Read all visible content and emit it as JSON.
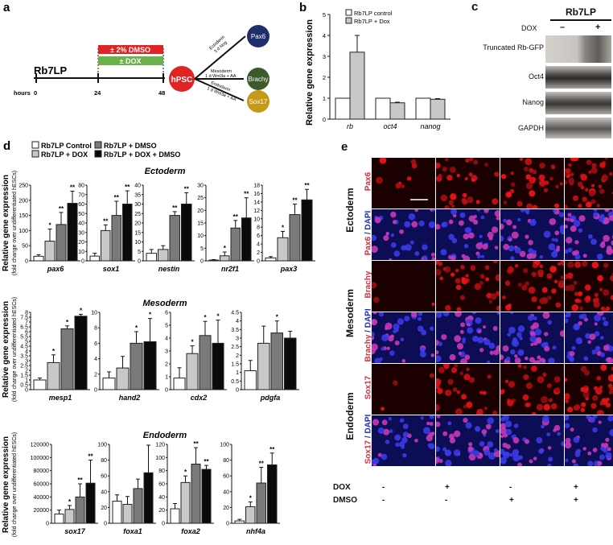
{
  "panel_a": {
    "letter": "a",
    "cell_line": "Rb7LP",
    "hours_label": "hours",
    "hours": [
      "0",
      "24",
      "48"
    ],
    "dmso": "± 2% DMSO",
    "dox": "± DOX",
    "hpsc": "hPSC",
    "routes": [
      {
        "name": "Ectoderm",
        "condition": "3 d Nog",
        "target": "Pax6",
        "color": "#1f2f6b"
      },
      {
        "name": "Mesoderm",
        "condition": "1 d Wnt3a + AA",
        "target": "Brachy",
        "color": "#3c5a2a"
      },
      {
        "name": "Endoderm",
        "condition": "1 d Wnt3a + AA",
        "target": "Sox17",
        "color": "#c59a17"
      }
    ],
    "colors": {
      "dmso": "#e02424",
      "dox": "#6ab04c",
      "hpsc": "#e02424"
    }
  },
  "panel_b": {
    "letter": "b",
    "ylabel": "Relative gene expression",
    "legend": [
      "Rb7LP control",
      "Rb7LP + Dox"
    ]
  },
  "panel_c": {
    "letter": "c",
    "title": "Rb7LP",
    "dox_label": "DOX",
    "dox_minus": "–",
    "dox_plus": "+",
    "rows": [
      "Truncated Rb-GFP",
      "Oct4",
      "Nanog",
      "GAPDH"
    ]
  },
  "panel_d": {
    "letter": "d",
    "legend": [
      "Rb7LP Control",
      "Rb7LP + DOX",
      "Rb7LP + DMSO",
      "Rb7LP + DOX + DMSO"
    ],
    "ylabel": "Relative gene expression",
    "ylabel_sub": "(fold change over undifferentiated hESCs)",
    "sections": [
      "Ectoderm",
      "Mesoderm",
      "Endoderm"
    ]
  },
  "panel_e": {
    "letter": "e",
    "germ_layers": [
      "Ectoderm",
      "Mesoderm",
      "Endoderm"
    ],
    "rows": [
      {
        "marker": "Pax6",
        "dapi": false
      },
      {
        "marker": "Pax6",
        "dapi": true
      },
      {
        "marker": "Brachy",
        "dapi": false
      },
      {
        "marker": "Brachy",
        "dapi": true
      },
      {
        "marker": "Sox17",
        "dapi": false
      },
      {
        "marker": "Sox17",
        "dapi": true
      }
    ],
    "dapi_suffix": " / DAPI",
    "dox_row": {
      "label": "DOX",
      "values": [
        "-",
        "+",
        "-",
        "+"
      ]
    },
    "dmso_row": {
      "label": "DMSO",
      "values": [
        "-",
        "-",
        "+",
        "+"
      ]
    },
    "colors": {
      "marker": "#e0283a",
      "dapi": "#1c2cc8"
    }
  },
  "chart_data": [
    {
      "type": "bar",
      "panel": "b",
      "categories": [
        "rb",
        "oct4",
        "nanog"
      ],
      "series": [
        {
          "name": "Rb7LP control",
          "values": [
            1.0,
            1.0,
            1.0
          ]
        },
        {
          "name": "Rb7LP + Dox",
          "values": [
            3.2,
            0.78,
            0.95
          ]
        }
      ],
      "errors": [
        [
          0,
          0,
          0
        ],
        [
          0.8,
          0.03,
          0.03
        ]
      ],
      "ylim": [
        0,
        5
      ],
      "yticks": [
        0,
        1,
        2,
        3,
        4,
        5
      ]
    },
    {
      "type": "bar",
      "panel": "d",
      "section": "Ectoderm",
      "gene": "pax6",
      "values": [
        15,
        65,
        120,
        190
      ],
      "errors": [
        5,
        40,
        40,
        40
      ],
      "sig": [
        "",
        "*",
        "**",
        "**"
      ],
      "ylim": [
        0,
        250
      ],
      "yticks": [
        0,
        50,
        100,
        150,
        200,
        250
      ]
    },
    {
      "type": "bar",
      "panel": "d",
      "section": "Ectoderm",
      "gene": "sox1",
      "values": [
        5,
        32,
        48,
        60
      ],
      "errors": [
        3,
        6,
        15,
        14
      ],
      "sig": [
        "",
        "**",
        "**",
        "**"
      ],
      "ylim": [
        0,
        80
      ],
      "yticks": [
        0,
        10,
        20,
        30,
        40,
        50,
        60,
        70,
        80
      ]
    },
    {
      "type": "bar",
      "panel": "d",
      "section": "Ectoderm",
      "gene": "nestin",
      "values": [
        4,
        6,
        24,
        30
      ],
      "errors": [
        2,
        2,
        2,
        6
      ],
      "sig": [
        "",
        "",
        "**",
        "**"
      ],
      "ylim": [
        0,
        40
      ],
      "yticks": [
        0,
        5,
        10,
        15,
        20,
        25,
        30,
        35,
        40
      ]
    },
    {
      "type": "bar",
      "panel": "d",
      "section": "Ectoderm",
      "gene": "nr2f1",
      "values": [
        0.3,
        2,
        13,
        17
      ],
      "errors": [
        0.2,
        1.5,
        3,
        8
      ],
      "sig": [
        "",
        "*",
        "**",
        "**"
      ],
      "ylim": [
        0,
        30
      ],
      "yticks": [
        0,
        5,
        10,
        15,
        20,
        25,
        30
      ]
    },
    {
      "type": "bar",
      "panel": "d",
      "section": "Ectoderm",
      "gene": "pax3",
      "values": [
        0.7,
        5.5,
        11,
        14.5
      ],
      "errors": [
        0.3,
        1.5,
        2.5,
        2.5
      ],
      "sig": [
        "",
        "*",
        "**",
        "**"
      ],
      "ylim": [
        0,
        18
      ],
      "yticks": [
        0,
        2,
        4,
        6,
        8,
        10,
        12,
        14,
        16,
        18
      ]
    },
    {
      "type": "bar",
      "panel": "d",
      "section": "Mesoderm",
      "gene": "mesp1",
      "values": [
        1,
        2.8,
        6.3,
        7.6
      ],
      "errors": [
        0.2,
        0.8,
        0.3,
        0.2
      ],
      "sig": [
        "",
        "*",
        "*",
        "*"
      ],
      "ylim": [
        0,
        8
      ],
      "yticks": [
        0,
        0.5,
        1,
        1.5,
        2,
        2.5,
        3,
        3.5,
        4,
        4.5,
        5,
        5.5,
        6,
        6.5,
        7,
        7.5,
        8
      ]
    },
    {
      "type": "bar",
      "panel": "d",
      "section": "Mesoderm",
      "gene": "hand2",
      "values": [
        1.5,
        2.8,
        6,
        6.2
      ],
      "errors": [
        0.8,
        1.5,
        1.5,
        3
      ],
      "sig": [
        "",
        "",
        "*",
        "*"
      ],
      "ylim": [
        0,
        10
      ],
      "yticks": [
        0,
        2,
        4,
        6,
        8,
        10
      ]
    },
    {
      "type": "bar",
      "panel": "d",
      "section": "Mesoderm",
      "gene": "cdx2",
      "values": [
        0.9,
        2.8,
        4.2,
        3.6
      ],
      "errors": [
        0.8,
        0.6,
        1.1,
        1.8
      ],
      "sig": [
        "",
        "*",
        "*",
        "*"
      ],
      "ylim": [
        0,
        6
      ],
      "yticks": [
        0,
        1,
        2,
        3,
        4,
        5,
        6
      ]
    },
    {
      "type": "bar",
      "panel": "d",
      "section": "Mesoderm",
      "gene": "pdgfa",
      "values": [
        1.1,
        2.7,
        3.3,
        3.0
      ],
      "errors": [
        0.6,
        1.0,
        0.7,
        0.4
      ],
      "sig": [
        "",
        "",
        "*",
        ""
      ],
      "ylim": [
        0,
        4.5
      ],
      "yticks": [
        0,
        0.5,
        1,
        1.5,
        2,
        2.5,
        3,
        3.5,
        4,
        4.5
      ]
    },
    {
      "type": "bar",
      "panel": "d",
      "section": "Endoderm",
      "gene": "sox17",
      "values": [
        14000,
        21000,
        40000,
        61000
      ],
      "errors": [
        6000,
        6000,
        20000,
        35000
      ],
      "sig": [
        "",
        "*",
        "**",
        "**"
      ],
      "ylim": [
        0,
        120000
      ],
      "yticks": [
        0,
        20000,
        40000,
        60000,
        80000,
        100000,
        120000
      ]
    },
    {
      "type": "bar",
      "panel": "d",
      "section": "Endoderm",
      "gene": "foxa1",
      "values": [
        28,
        24,
        44,
        64
      ],
      "errors": [
        8,
        10,
        12,
        35
      ],
      "sig": [
        "",
        "",
        "",
        ""
      ],
      "ylim": [
        0,
        100
      ],
      "yticks": [
        0,
        20,
        40,
        60,
        80,
        100
      ]
    },
    {
      "type": "bar",
      "panel": "d",
      "section": "Endoderm",
      "gene": "foxa2",
      "values": [
        22,
        62,
        90,
        82
      ],
      "errors": [
        8,
        10,
        25,
        6
      ],
      "sig": [
        "",
        "*",
        "**",
        "**"
      ],
      "ylim": [
        0,
        120
      ],
      "yticks": [
        0,
        20,
        40,
        60,
        80,
        100,
        120
      ]
    },
    {
      "type": "bar",
      "panel": "d",
      "section": "Endoderm",
      "gene": "nhf4a",
      "values": [
        3,
        21,
        51,
        74
      ],
      "errors": [
        2,
        6,
        20,
        15
      ],
      "sig": [
        "",
        "*",
        "**",
        "**"
      ],
      "ylim": [
        0,
        100
      ],
      "yticks": [
        0,
        20,
        40,
        60,
        80,
        100
      ]
    }
  ]
}
